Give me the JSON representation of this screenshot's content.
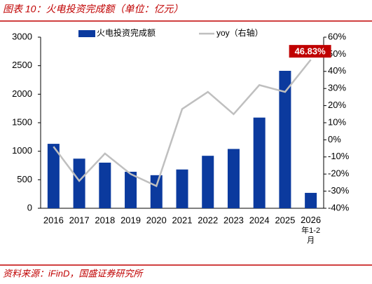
{
  "chart_data": {
    "type": "bar",
    "title": "图表 10：火电投资完成额（单位：亿元）",
    "source": "资料来源：iFinD，国盛证券研究所",
    "categories": [
      "2016",
      "2017",
      "2018",
      "2019",
      "2020",
      "2021",
      "2022",
      "2023",
      "2024",
      "2025",
      "2026\n年1-2\n月"
    ],
    "series": [
      {
        "name": "火电投资完成额",
        "type": "bar",
        "color": "#0b3a9e",
        "values": [
          1130,
          870,
          800,
          640,
          580,
          680,
          920,
          1040,
          1590,
          2410,
          270
        ]
      },
      {
        "name": "yoy（右轴）",
        "type": "line",
        "axis": "y2",
        "color": "#bfbfbf",
        "values": [
          -4,
          -24,
          -8,
          -20,
          -27,
          18,
          28,
          15,
          32,
          28,
          46.83
        ],
        "value_labels": [
          null,
          null,
          null,
          null,
          null,
          null,
          null,
          null,
          null,
          null,
          "46.83%"
        ]
      }
    ],
    "ylim": [
      0,
      3000
    ],
    "yticks": [
      0,
      500,
      1000,
      1500,
      2000,
      2500,
      3000
    ],
    "y2lim": [
      -40,
      60
    ],
    "y2ticks": [
      {
        "value": -40,
        "label": "-40%"
      },
      {
        "value": -30,
        "label": "-30%"
      },
      {
        "value": -20,
        "label": "-20%"
      },
      {
        "value": -10,
        "label": "-10%"
      },
      {
        "value": 0,
        "label": "0%"
      },
      {
        "value": 10,
        "label": "10%"
      },
      {
        "value": 20,
        "label": "20%"
      },
      {
        "value": 30,
        "label": "30%"
      },
      {
        "value": 40,
        "label": "40%"
      },
      {
        "value": 50,
        "label": "50%"
      },
      {
        "value": 60,
        "label": "60%"
      }
    ],
    "grid": false,
    "label_color": "#c00000"
  }
}
